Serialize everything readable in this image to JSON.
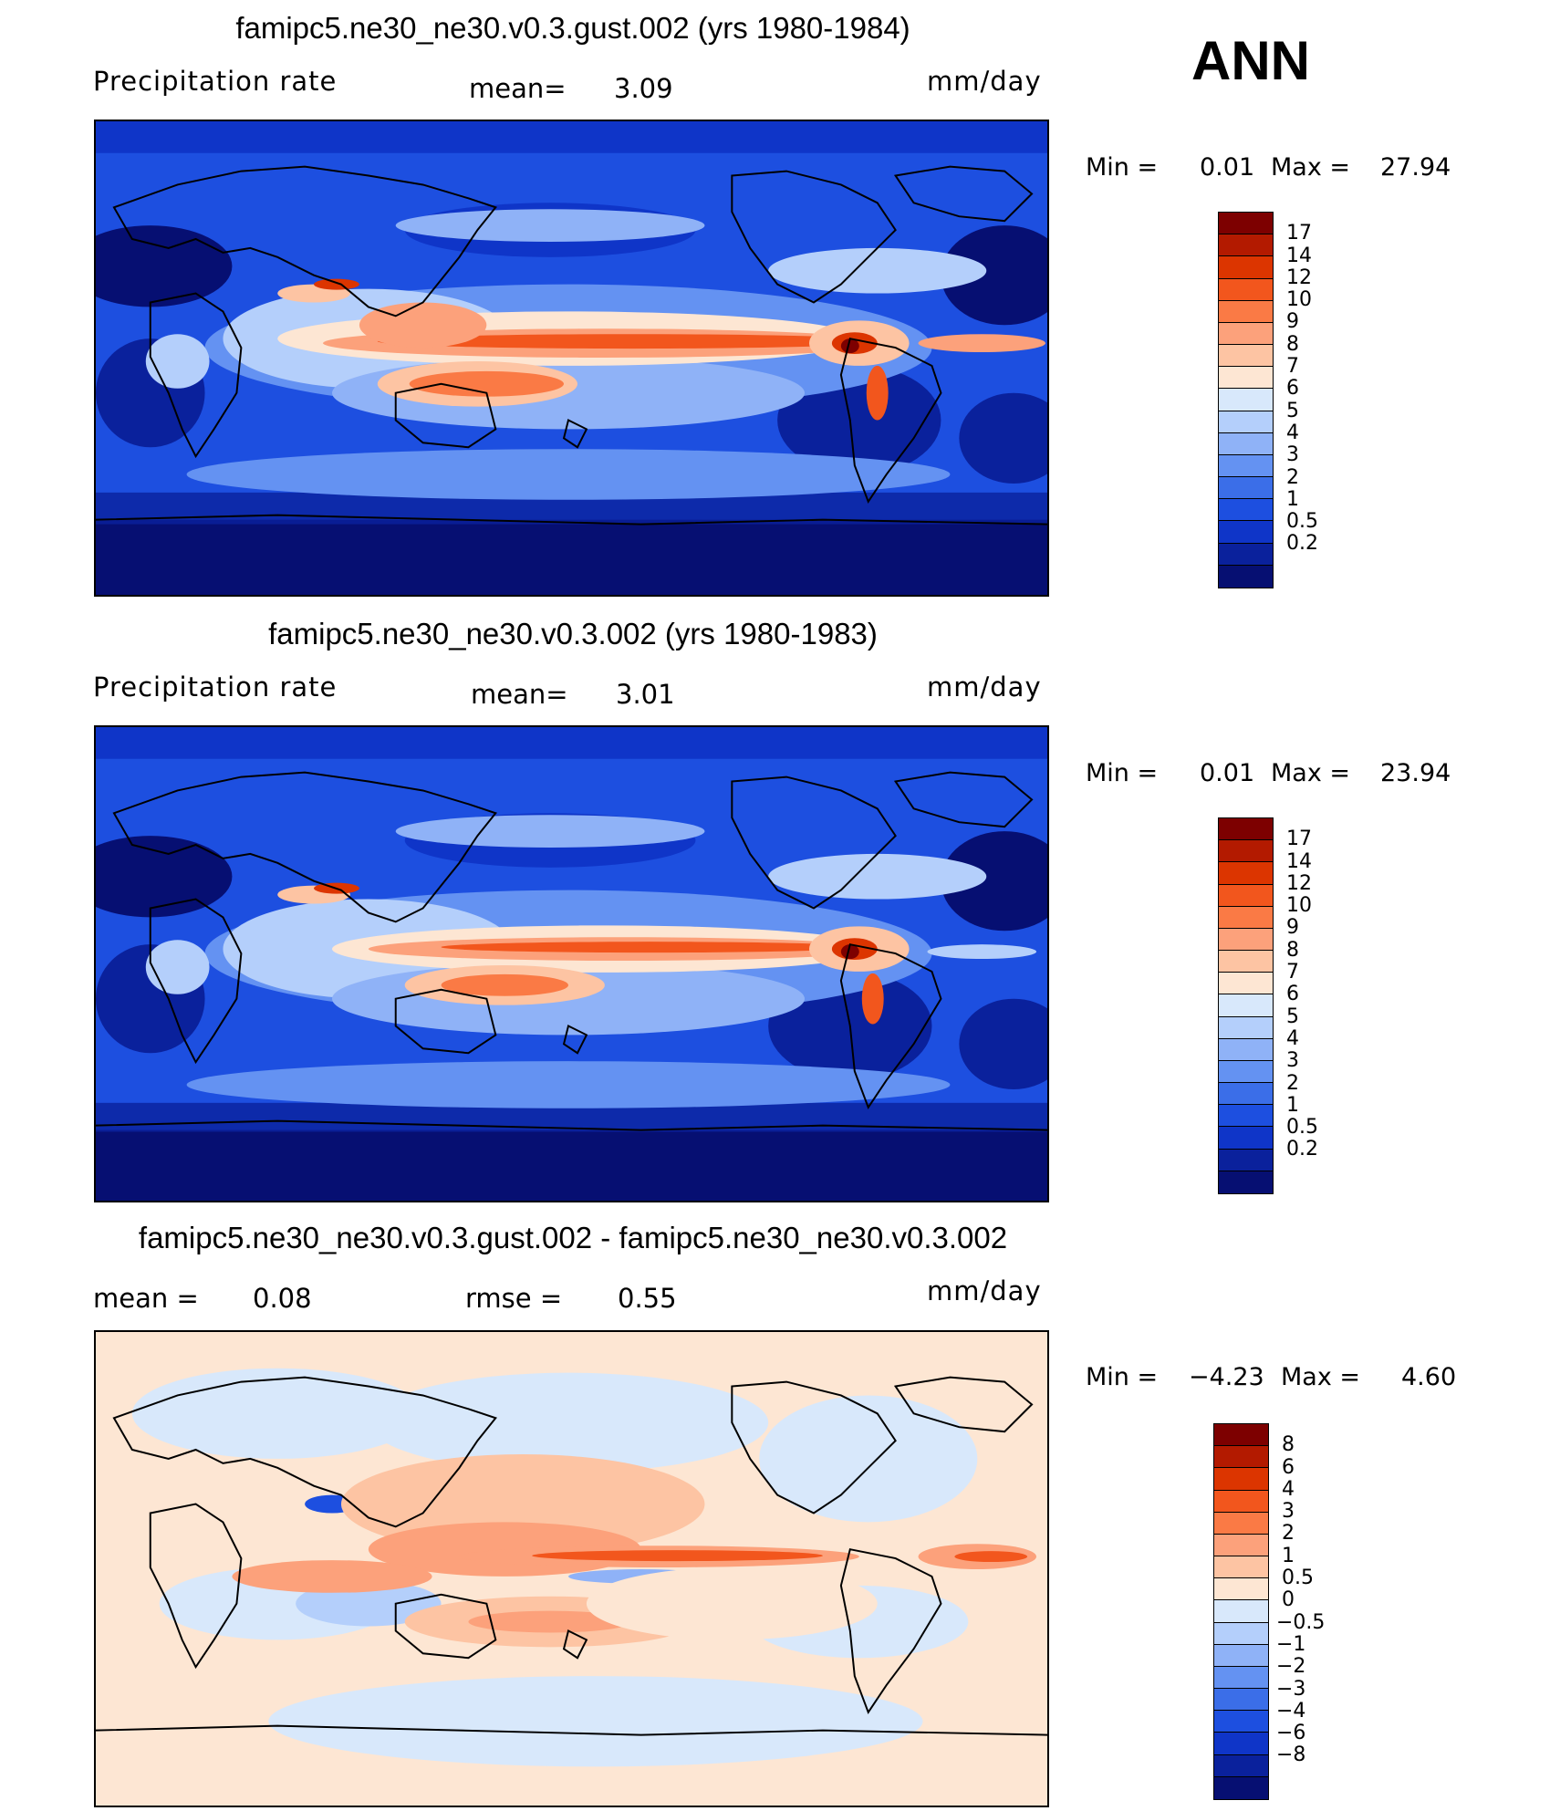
{
  "season": "ANN",
  "panels": [
    {
      "id": "test",
      "title": "famipc5.ne30_ne30.v0.3.gust.002 (yrs 1980-1984)",
      "left_label": "Precipitation  rate",
      "mean_label": "mean=",
      "mean_value": "3.09",
      "units": "mm/day",
      "min_label": "Min  =",
      "min_value": "0.01",
      "max_label": "Max  =",
      "max_value": "27.94",
      "colorbar": {
        "colors": [
          "#7d0000",
          "#b31a00",
          "#dc3500",
          "#f2561d",
          "#fa7a45",
          "#fca17b",
          "#fdc4a3",
          "#fde6d3",
          "#d8e8fb",
          "#b4cffb",
          "#8fb2f7",
          "#6492f2",
          "#3b6ee8",
          "#1d4fe0",
          "#0f35c8",
          "#0a219c",
          "#060f72"
        ],
        "labels": [
          "17",
          "14",
          "12",
          "10",
          "9",
          "8",
          "7",
          "6",
          "5",
          "4",
          "3",
          "2",
          "1",
          "0.5",
          "0.2"
        ]
      }
    },
    {
      "id": "control",
      "title": "famipc5.ne30_ne30.v0.3.002 (yrs 1980-1983)",
      "left_label": "Precipitation  rate",
      "mean_label": "mean=",
      "mean_value": "3.01",
      "units": "mm/day",
      "min_label": "Min  =",
      "min_value": "0.01",
      "max_label": "Max  =",
      "max_value": "23.94",
      "colorbar": {
        "colors": [
          "#7d0000",
          "#b31a00",
          "#dc3500",
          "#f2561d",
          "#fa7a45",
          "#fca17b",
          "#fdc4a3",
          "#fde6d3",
          "#d8e8fb",
          "#b4cffb",
          "#8fb2f7",
          "#6492f2",
          "#3b6ee8",
          "#1d4fe0",
          "#0f35c8",
          "#0a219c",
          "#060f72"
        ],
        "labels": [
          "17",
          "14",
          "12",
          "10",
          "9",
          "8",
          "7",
          "6",
          "5",
          "4",
          "3",
          "2",
          "1",
          "0.5",
          "0.2"
        ]
      }
    },
    {
      "id": "difference",
      "title": "famipc5.ne30_ne30.v0.3.gust.002 - famipc5.ne30_ne30.v0.3.002",
      "left_label": "mean  =",
      "left_value": "0.08",
      "mean_label": "rmse  =",
      "mean_value": "0.55",
      "units": "mm/day",
      "min_label": "Min  =",
      "min_value": "−4.23",
      "max_label": "Max  =",
      "max_value": "4.60",
      "colorbar": {
        "colors": [
          "#7d0000",
          "#b31a00",
          "#dc3500",
          "#f2561d",
          "#fa7a45",
          "#fca17b",
          "#fdc4a3",
          "#fde6d3",
          "#d8e8fb",
          "#b4cffb",
          "#8fb2f7",
          "#6492f2",
          "#3b6ee8",
          "#1d4fe0",
          "#0f35c8",
          "#0a219c",
          "#060f72"
        ],
        "labels": [
          "8",
          "6",
          "4",
          "3",
          "2",
          "1",
          "0.5",
          "0",
          "−0.5",
          "−1",
          "−2",
          "−3",
          "−4",
          "−6",
          "−8"
        ]
      }
    }
  ]
}
